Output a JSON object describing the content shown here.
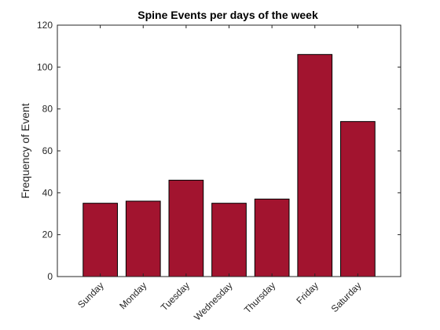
{
  "chart_data": {
    "type": "bar",
    "title": "Spine Events per days of the week",
    "xlabel": "",
    "ylabel": "Frequency of Event",
    "categories": [
      "Sunday",
      "Monday",
      "Tuesday",
      "Wednesday",
      "Thursday",
      "Friday",
      "Saturday"
    ],
    "values": [
      35,
      36,
      46,
      35,
      37,
      106,
      74
    ],
    "ylim": [
      0,
      120
    ],
    "yticks": [
      0,
      20,
      40,
      60,
      80,
      100,
      120
    ],
    "bar_color": "#A2142F",
    "grid": false,
    "legend": "none"
  }
}
